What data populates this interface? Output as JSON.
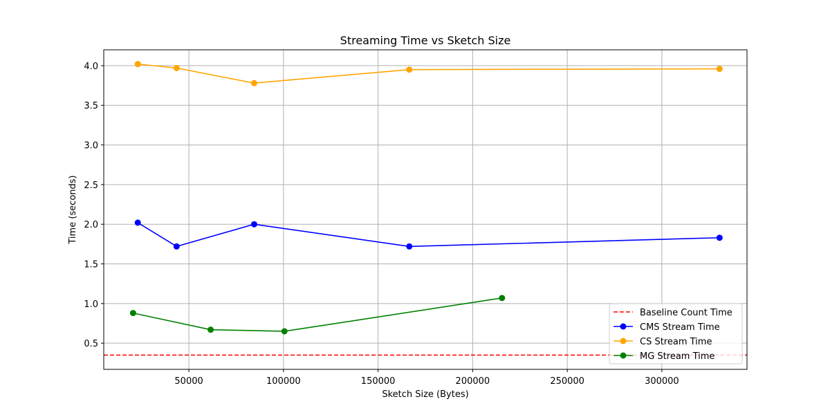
{
  "chart_data": {
    "type": "line",
    "title": "Streaming Time vs Sketch Size",
    "xlabel": "Sketch Size (Bytes)",
    "ylabel": "Time (seconds)",
    "xlim": [
      5000,
      345000
    ],
    "ylim": [
      0.17,
      4.2
    ],
    "xticks": [
      50000,
      100000,
      150000,
      200000,
      250000,
      300000
    ],
    "yticks": [
      0.5,
      1.0,
      1.5,
      2.0,
      2.5,
      3.0,
      3.5,
      4.0
    ],
    "grid": true,
    "legend_position": "lower right",
    "baseline": {
      "name": "Baseline Count Time",
      "value": 0.35,
      "color": "#ff0000",
      "style": "dashed"
    },
    "series": [
      {
        "name": "CMS Stream Time",
        "color": "#0000ff",
        "x": [
          23000,
          43500,
          84500,
          166500,
          330500
        ],
        "y": [
          2.02,
          1.72,
          2.0,
          1.72,
          1.83
        ]
      },
      {
        "name": "CS Stream Time",
        "color": "#ffa500",
        "x": [
          23000,
          43500,
          84500,
          166500,
          330500
        ],
        "y": [
          4.02,
          3.97,
          3.78,
          3.95,
          3.96
        ]
      },
      {
        "name": "MG Stream Time",
        "color": "#008000",
        "x": [
          20500,
          61500,
          100500,
          215500
        ],
        "y": [
          0.88,
          0.67,
          0.65,
          1.07
        ]
      }
    ]
  }
}
